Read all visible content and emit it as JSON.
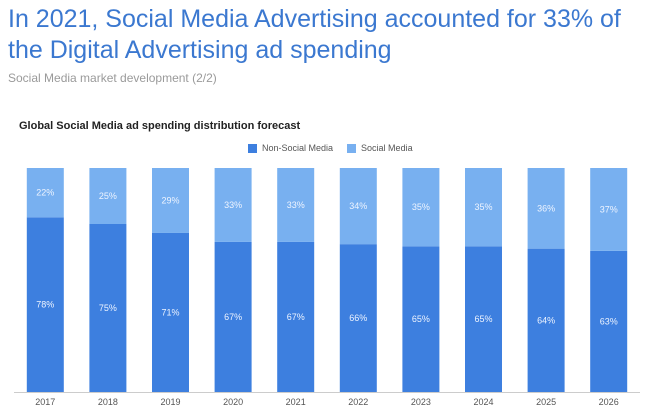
{
  "header": {
    "headline": "In 2021, Social Media Advertising accounted for 33% of the Digital Advertising ad spending",
    "subtitle": "Social Media market development (2/2)"
  },
  "colors": {
    "non_social": "#3d7fdf",
    "social": "#78b0f0",
    "headline": "#3b78d0"
  },
  "chart_data": {
    "type": "bar",
    "stacked": true,
    "percent": true,
    "title": "Global Social Media ad spending distribution forecast",
    "legend_position": "top-right",
    "categories": [
      "2017",
      "2018",
      "2019",
      "2020",
      "2021",
      "2022",
      "2023",
      "2024",
      "2025",
      "2026"
    ],
    "series": [
      {
        "name": "Non-Social Media",
        "values": [
          78,
          75,
          71,
          67,
          67,
          66,
          65,
          65,
          64,
          63
        ]
      },
      {
        "name": "Social Media",
        "values": [
          22,
          25,
          29,
          33,
          33,
          34,
          35,
          35,
          36,
          37
        ]
      }
    ],
    "ylim": [
      0,
      100
    ],
    "grid": false,
    "xlabel": "",
    "ylabel": ""
  }
}
